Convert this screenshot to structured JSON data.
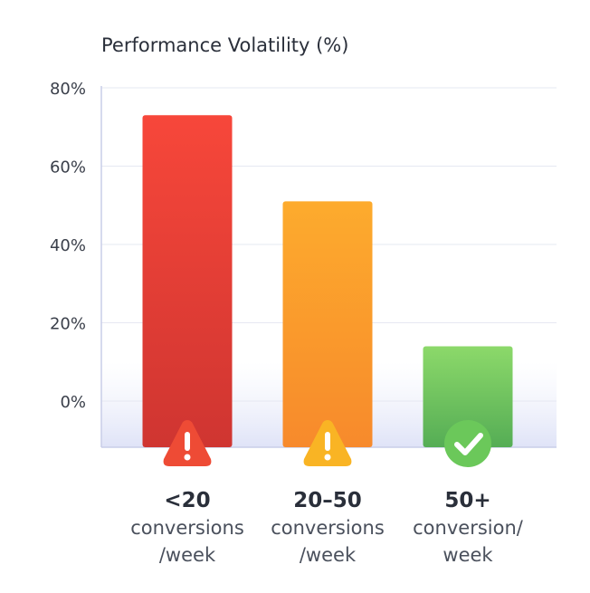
{
  "chart_data": {
    "type": "bar",
    "title": "Performance Volatility (%)",
    "xlabel": "",
    "ylabel": "",
    "ylim": [
      0,
      80
    ],
    "yticks": [
      "0%",
      "20%",
      "40%",
      "60%",
      "80%"
    ],
    "ytick_values": [
      0,
      20,
      40,
      60,
      80
    ],
    "grid": true,
    "categories": [
      {
        "main": "<20",
        "line1": "conversions",
        "line2": "/week",
        "icon": "warning-icon",
        "color_top": "#f7473a",
        "color_bottom": "#cf3531",
        "icon_color": "#ee4b35"
      },
      {
        "main": "20–50",
        "line1": "conversions",
        "line2": "/week",
        "icon": "warning-icon",
        "color_top": "#fdab2d",
        "color_bottom": "#f78a2c",
        "icon_color": "#f9b424"
      },
      {
        "main": "50+",
        "line1": "conversion/",
        "line2": "week",
        "icon": "check-circle-icon",
        "color_top": "#8cd96a",
        "color_bottom": "#55ad55",
        "icon_color": "#6bc85a"
      }
    ],
    "values": [
      73,
      51,
      14
    ]
  }
}
